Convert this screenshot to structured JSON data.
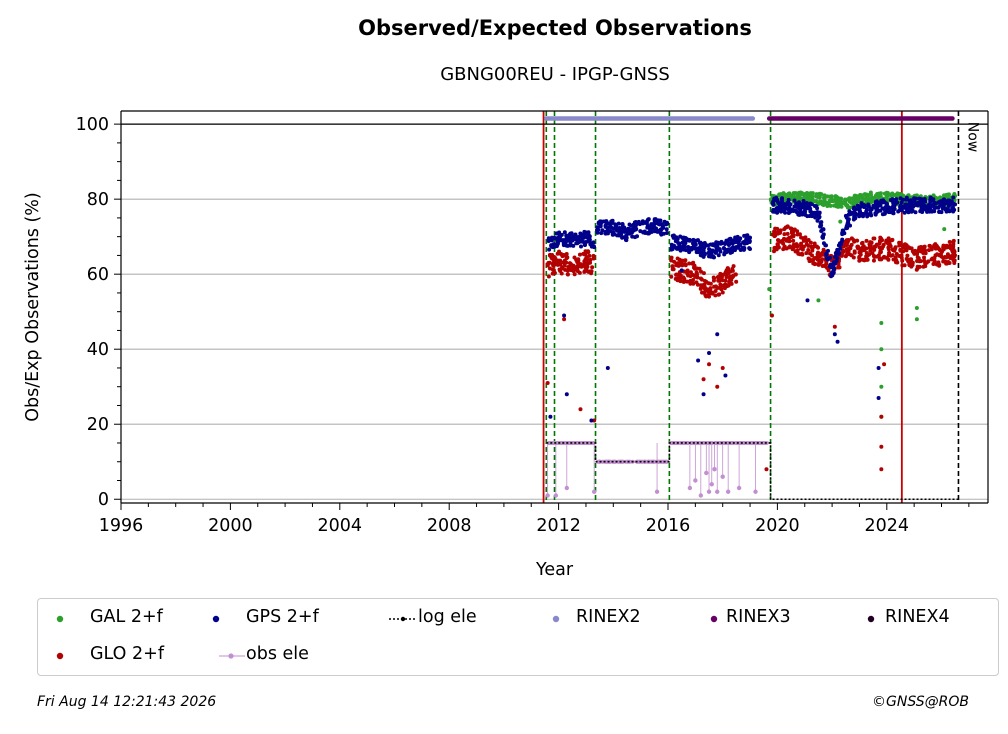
{
  "chart_data": {
    "type": "scatter",
    "title": "Observed/Expected Observations",
    "subtitle": "GBNG00REU - IPGP-GNSS",
    "xlabel": "Year",
    "ylabel": "Obs/Exp Observations (%)",
    "xlim": [
      1996,
      2027.7
    ],
    "ylim": [
      -1,
      103.5
    ],
    "x_ticks": [
      "1996",
      "2000",
      "2004",
      "2008",
      "2012",
      "2016",
      "2020",
      "2024"
    ],
    "x_tick_values": [
      1996,
      2000,
      2004,
      2008,
      2012,
      2016,
      2020,
      2024
    ],
    "y_ticks": [
      "0",
      "20",
      "40",
      "60",
      "80",
      "100"
    ],
    "y_tick_values": [
      0,
      20,
      40,
      60,
      80,
      100
    ],
    "grid": "horizontal",
    "now_label": "Now",
    "now_x": 2026.62,
    "equipment_change_lines_green": [
      2011.55,
      2011.85,
      2013.35,
      2016.05,
      2019.75
    ],
    "red_lines": [
      2011.45,
      2024.55
    ],
    "colors": {
      "gal": "#2ca02c",
      "gps": "#00008b",
      "glo": "#b30000",
      "obs_ele": "#c28fd0",
      "log_ele": "#000000",
      "rinex2": "#8888cc",
      "rinex3": "#660066",
      "rinex4": "#220022",
      "vline_green": "#007700",
      "vline_red": "#cc0000"
    },
    "series": [
      {
        "name": "GAL 2+f",
        "segments": [
          {
            "x": [
              2019.75,
              2020.5,
              2021.5,
              2022.5,
              2023.5,
              2024.5,
              2025.5,
              2026.5
            ],
            "y": [
              79.5,
              80.5,
              80,
              79,
              80.5,
              80,
              79.5,
              80
            ]
          }
        ],
        "outliers": [
          [
            2021.5,
            53
          ],
          [
            2019.8,
            49
          ],
          [
            2023.8,
            47
          ],
          [
            2023.8,
            40
          ],
          [
            2023.8,
            30
          ],
          [
            2023.8,
            22
          ],
          [
            2025.1,
            51
          ],
          [
            2025.1,
            48
          ],
          [
            2019.7,
            56
          ],
          [
            2022.3,
            74
          ],
          [
            2026.1,
            72
          ]
        ]
      },
      {
        "name": "GPS 2+f",
        "segments": [
          {
            "x": [
              2011.6,
              2012.0,
              2012.5,
              2013.0,
              2013.3
            ],
            "y": [
              68,
              69.5,
              69,
              69.5,
              69
            ]
          },
          {
            "x": [
              2013.4,
              2014.0,
              2014.5,
              2015.0,
              2015.5,
              2016.0
            ],
            "y": [
              72,
              72.5,
              71,
              72.5,
              73,
              72
            ]
          },
          {
            "x": [
              2016.1,
              2016.5,
              2017.0,
              2017.5,
              2018.0,
              2018.5,
              2019.0
            ],
            "y": [
              68.5,
              68,
              67.5,
              66,
              67,
              68,
              68.5
            ]
          },
          {
            "x": [
              2019.8,
              2020.5,
              2021.0,
              2021.5,
              2022.0,
              2022.5,
              2023.0,
              2024.0,
              2025.0,
              2026.5
            ],
            "y": [
              78.5,
              78,
              77.5,
              76,
              60,
              74,
              77,
              78,
              78.5,
              78.5
            ]
          }
        ],
        "outliers": [
          [
            2013.2,
            21
          ],
          [
            2012.3,
            28
          ],
          [
            2017.1,
            37
          ],
          [
            2017.5,
            39
          ],
          [
            2018.1,
            33
          ],
          [
            2016.5,
            61
          ],
          [
            2022.1,
            44
          ],
          [
            2022.2,
            42
          ],
          [
            2023.7,
            35
          ],
          [
            2023.7,
            27
          ],
          [
            2012.2,
            49
          ],
          [
            2013.8,
            35
          ],
          [
            2017.8,
            44
          ],
          [
            2021.1,
            53
          ],
          [
            2011.7,
            22
          ],
          [
            2017.3,
            28
          ]
        ]
      },
      {
        "name": "GLO 2+f",
        "segments": [
          {
            "x": [
              2011.6,
              2012.0,
              2012.5,
              2013.0,
              2013.3
            ],
            "y": [
              62,
              63.5,
              62,
              63.5,
              63
            ]
          },
          {
            "x": [
              2016.1,
              2016.5,
              2017.0,
              2017.5,
              2018.0,
              2018.5
            ],
            "y": [
              62,
              61,
              60,
              56,
              58,
              61
            ]
          },
          {
            "x": [
              2019.8,
              2020.5,
              2021.0,
              2021.5,
              2022.0,
              2022.5,
              2023.0,
              2024.0,
              2025.0,
              2026.5
            ],
            "y": [
              69,
              70,
              67,
              65,
              62,
              67,
              66,
              67,
              64,
              66
            ]
          }
        ],
        "outliers": [
          [
            2012.8,
            24
          ],
          [
            2012.2,
            48
          ],
          [
            2013.3,
            21
          ],
          [
            2017.3,
            32
          ],
          [
            2017.5,
            36
          ],
          [
            2018.0,
            35
          ],
          [
            2016.7,
            58
          ],
          [
            2019.6,
            8
          ],
          [
            2019.8,
            49
          ],
          [
            2023.8,
            8
          ],
          [
            2023.8,
            14
          ],
          [
            2023.8,
            22
          ],
          [
            2023.9,
            36
          ],
          [
            2022.1,
            46
          ],
          [
            2011.6,
            31
          ],
          [
            2017.8,
            30
          ]
        ]
      }
    ],
    "obs_ele": {
      "name": "obs ele",
      "segments": [
        {
          "x": [
            2011.55,
            2012.0,
            2012.5,
            2013.0,
            2013.3
          ],
          "y": [
            15,
            15,
            15,
            15,
            15
          ]
        },
        {
          "x": [
            2013.4,
            2014.5,
            2016.0
          ],
          "y": [
            10,
            10,
            10
          ]
        },
        {
          "x": [
            2016.1,
            2017.0,
            2018.0,
            2019.7
          ],
          "y": [
            15,
            15,
            15,
            15
          ]
        }
      ],
      "dips": [
        [
          2011.6,
          1
        ],
        [
          2011.9,
          1
        ],
        [
          2012.3,
          3
        ],
        [
          2013.3,
          2
        ],
        [
          2015.6,
          2
        ],
        [
          2016.8,
          3
        ],
        [
          2017.0,
          5
        ],
        [
          2017.2,
          1
        ],
        [
          2017.4,
          7
        ],
        [
          2017.5,
          2
        ],
        [
          2017.6,
          4
        ],
        [
          2017.7,
          8
        ],
        [
          2017.8,
          2
        ],
        [
          2018.0,
          6
        ],
        [
          2018.2,
          2
        ],
        [
          2018.6,
          3
        ],
        [
          2019.2,
          2
        ]
      ]
    },
    "log_ele": {
      "name": "log ele",
      "x": [
        2011.55,
        2013.35,
        2013.35,
        2016.05,
        2016.05,
        2019.75,
        2019.75,
        2026.62
      ],
      "y": [
        15,
        15,
        10,
        10,
        15,
        15,
        0,
        0
      ]
    },
    "rinex_bands": [
      {
        "name": "RINEX2",
        "x_start": 2011.55,
        "x_end": 2019.1,
        "y": 101.5
      },
      {
        "name": "RINEX3",
        "x_start": 2019.7,
        "x_end": 2026.4,
        "y": 101.5
      },
      {
        "name": "RINEX4",
        "x_start": null,
        "x_end": null,
        "y": 101.5
      }
    ],
    "legend_placement": "bottom",
    "legend": [
      {
        "label": "GAL 2+f",
        "marker": "dot",
        "color": "#2ca02c"
      },
      {
        "label": "GPS 2+f",
        "marker": "dot",
        "color": "#00008b"
      },
      {
        "label": "log ele",
        "marker": "dotted-line",
        "color": "#000000"
      },
      {
        "label": "RINEX2",
        "marker": "dot",
        "color": "#8888cc"
      },
      {
        "label": "RINEX3",
        "marker": "dot",
        "color": "#660066"
      },
      {
        "label": "RINEX4",
        "marker": "dot",
        "color": "#220022"
      },
      {
        "label": "GLO 2+f",
        "marker": "dot",
        "color": "#b30000"
      },
      {
        "label": "obs ele",
        "marker": "line-dot",
        "color": "#c28fd0"
      }
    ]
  },
  "footer": {
    "timestamp": "Fri Aug 14 12:21:43 2026",
    "credit": "©GNSS@ROB"
  }
}
